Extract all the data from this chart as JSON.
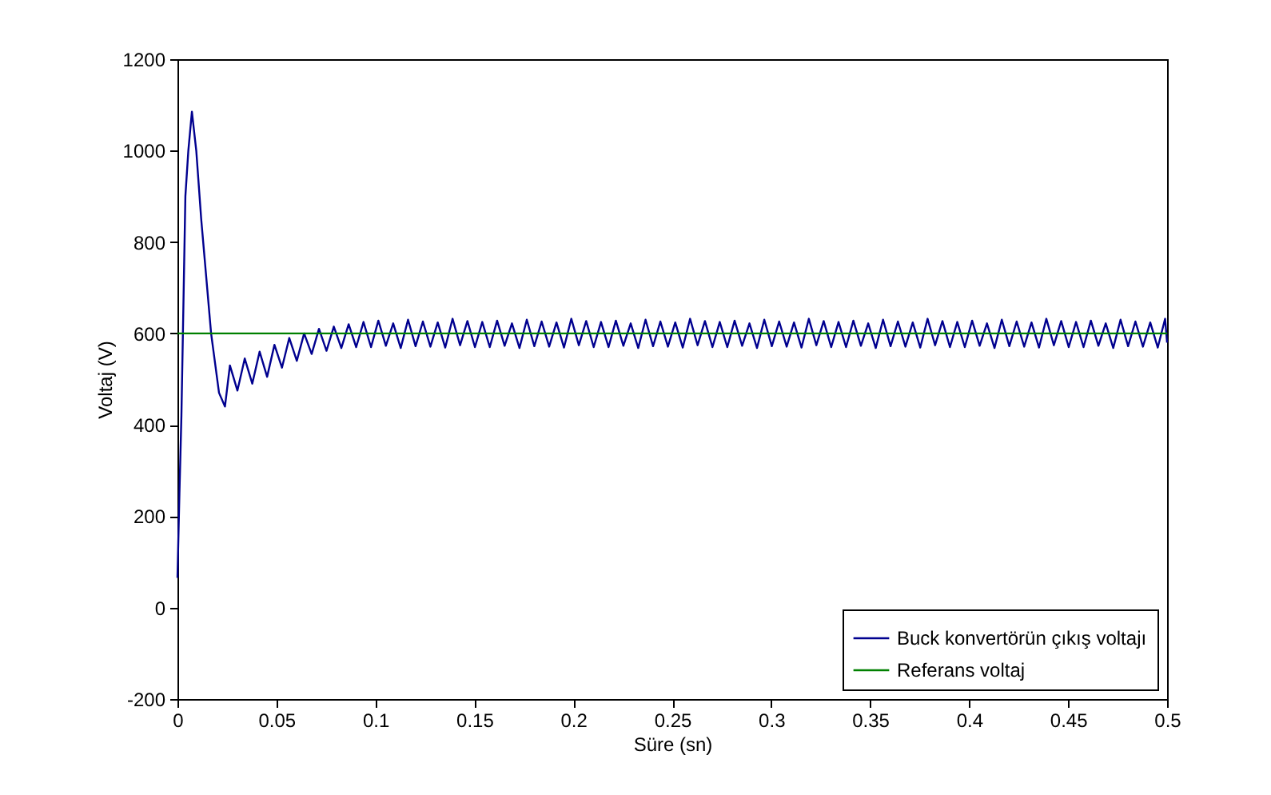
{
  "chart_data": {
    "type": "line",
    "xlabel": "Süre (sn)",
    "ylabel": "Voltaj (V)",
    "xlim": [
      0,
      0.5
    ],
    "xticks": [
      0,
      0.05,
      0.1,
      0.15,
      0.2,
      0.25,
      0.3,
      0.35,
      0.4,
      0.45,
      0.5
    ],
    "ylim": [
      -200,
      1200
    ],
    "yticks": [
      -200,
      0,
      200,
      400,
      600,
      800,
      1000,
      1200
    ],
    "legend": "bottom right",
    "series": [
      {
        "name": "Buck konvertörün çıkış voltajı",
        "color": "#00008f",
        "x": [
          0,
          0.001,
          0.002,
          0.004,
          0.0055,
          0.0073,
          0.0095,
          0.012,
          0.017,
          0.021,
          0.024,
          0.0265,
          0.0303,
          0.034,
          0.0378,
          0.0415,
          0.0453,
          0.049,
          0.0528,
          0.0565,
          0.0603,
          0.064,
          0.0678,
          0.0715,
          0.0753,
          0.079,
          0.0828,
          0.0865,
          0.0903,
          0.094,
          0.0978,
          0.1015,
          0.1053,
          0.109,
          0.1128,
          0.1165,
          0.1203,
          0.124,
          0.1278,
          0.1315,
          0.1353,
          0.139,
          0.1428,
          0.1465,
          0.1503,
          0.154,
          0.1578,
          0.1615,
          0.1653,
          0.169,
          0.1728,
          0.1765,
          0.1803,
          0.184,
          0.1878,
          0.1915,
          0.1953,
          0.199,
          0.2028,
          0.2065,
          0.2103,
          0.214,
          0.2178,
          0.2215,
          0.2253,
          0.229,
          0.2328,
          0.2365,
          0.2403,
          0.244,
          0.2478,
          0.2515,
          0.2553,
          0.259,
          0.2628,
          0.2665,
          0.2703,
          0.274,
          0.2778,
          0.2815,
          0.2853,
          0.289,
          0.2928,
          0.2965,
          0.3003,
          0.304,
          0.3078,
          0.3115,
          0.3153,
          0.319,
          0.3228,
          0.3265,
          0.3303,
          0.334,
          0.3378,
          0.3415,
          0.3453,
          0.349,
          0.3528,
          0.3565,
          0.3603,
          0.364,
          0.3678,
          0.3715,
          0.3753,
          0.379,
          0.3828,
          0.3865,
          0.3903,
          0.394,
          0.3978,
          0.4015,
          0.4053,
          0.409,
          0.4128,
          0.4165,
          0.4203,
          0.424,
          0.4278,
          0.4315,
          0.4353,
          0.439,
          0.4428,
          0.4465,
          0.4503,
          0.454,
          0.4578,
          0.4615,
          0.4653,
          0.469,
          0.4728,
          0.4765,
          0.4803,
          0.484,
          0.4878,
          0.4915,
          0.4953,
          0.499,
          0.5
        ],
        "values": [
          65,
          250,
          420,
          900,
          1000,
          1085,
          1000,
          850,
          600,
          470,
          440,
          530,
          475,
          545,
          490,
          560,
          505,
          575,
          525,
          590,
          540,
          600,
          555,
          610,
          562,
          615,
          568,
          620,
          570,
          625,
          570,
          628,
          573,
          622,
          568,
          630,
          572,
          626,
          571,
          624,
          569,
          632,
          574,
          627,
          570,
          625,
          570,
          628,
          573,
          622,
          568,
          630,
          572,
          626,
          571,
          624,
          569,
          632,
          574,
          627,
          570,
          625,
          570,
          628,
          573,
          622,
          568,
          630,
          572,
          626,
          571,
          624,
          569,
          632,
          574,
          627,
          570,
          625,
          570,
          628,
          573,
          622,
          568,
          630,
          572,
          626,
          571,
          624,
          569,
          632,
          574,
          627,
          570,
          625,
          570,
          628,
          573,
          622,
          568,
          630,
          572,
          626,
          571,
          624,
          569,
          632,
          574,
          627,
          570,
          625,
          570,
          628,
          573,
          622,
          568,
          630,
          572,
          626,
          571,
          624,
          569,
          632,
          574,
          627,
          570,
          625,
          570,
          628,
          573,
          622,
          568,
          630,
          572,
          626,
          571,
          624,
          569,
          632,
          580
        ]
      },
      {
        "name": "Referans voltaj",
        "color": "#008000",
        "x": [
          0,
          0.5
        ],
        "values": [
          600,
          600
        ]
      }
    ]
  }
}
